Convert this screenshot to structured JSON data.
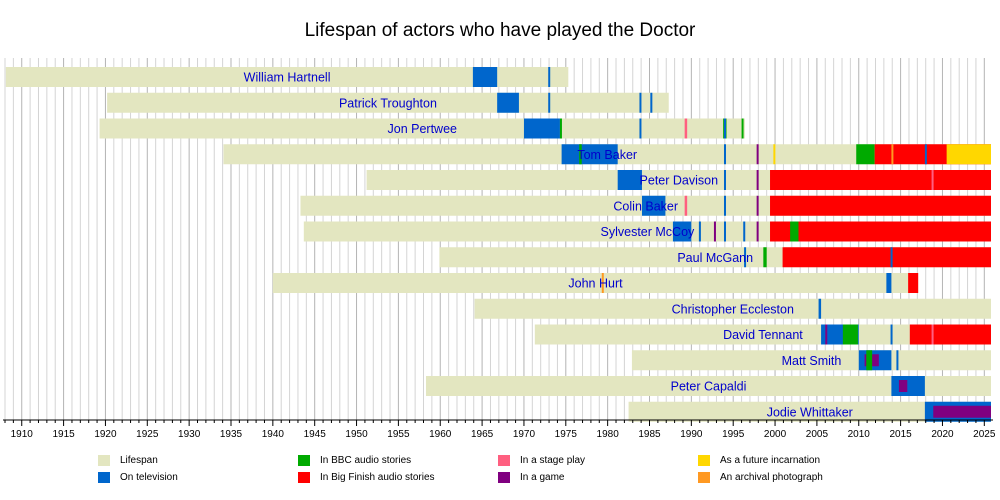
{
  "colors": {
    "lifespan": "#e3e6c0",
    "television": "#0066cc",
    "bbc_audio": "#00aa00",
    "big_finish": "#ff0000",
    "stage_play": "#ff5f80",
    "game": "#800080",
    "future": "#ffd700",
    "archival": "#ff9922"
  },
  "chart_data": {
    "type": "timeline",
    "title": "Lifespan of actors who have played the Doctor",
    "xlim": [
      1908,
      2025.8
    ],
    "x_ticks": [
      1910,
      1915,
      1920,
      1925,
      1930,
      1935,
      1940,
      1945,
      1950,
      1955,
      1960,
      1965,
      1970,
      1975,
      1980,
      1985,
      1990,
      1995,
      2000,
      2005,
      2010,
      2015,
      2020,
      2025
    ],
    "grid": "vertical minor lines every year",
    "legend": [
      {
        "key": "lifespan",
        "label": "Lifespan"
      },
      {
        "key": "television",
        "label": "On television"
      },
      {
        "key": "bbc_audio",
        "label": "In BBC audio stories"
      },
      {
        "key": "big_finish",
        "label": "In Big Finish audio stories"
      },
      {
        "key": "stage_play",
        "label": "In a stage play"
      },
      {
        "key": "game",
        "label": "In a game"
      },
      {
        "key": "future",
        "label": "As a future incarnation"
      },
      {
        "key": "archival",
        "label": "An archival photograph"
      }
    ],
    "actors": [
      {
        "name": "William Hartnell",
        "lifespan": [
          1908.1,
          1975.3
        ],
        "segments": [
          {
            "type": "television",
            "start": 1963.9,
            "end": 1966.8
          },
          {
            "type": "television",
            "start": 1972.9,
            "end": 1973.1
          }
        ]
      },
      {
        "name": "Patrick Troughton",
        "lifespan": [
          1920.2,
          1987.3
        ],
        "segments": [
          {
            "type": "television",
            "start": 1966.8,
            "end": 1969.4
          },
          {
            "type": "television",
            "start": 1972.9,
            "end": 1973.1
          },
          {
            "type": "television",
            "start": 1983.8,
            "end": 1984.0
          },
          {
            "type": "television",
            "start": 1985.1,
            "end": 1985.3
          }
        ]
      },
      {
        "name": "Jon Pertwee",
        "lifespan": [
          1919.3,
          1996.4
        ],
        "segments": [
          {
            "type": "television",
            "start": 1970.0,
            "end": 1974.3
          },
          {
            "type": "bbc_audio",
            "start": 1974.3,
            "end": 1974.5
          },
          {
            "type": "television",
            "start": 1983.8,
            "end": 1984.0
          },
          {
            "type": "stage_play",
            "start": 1989.2,
            "end": 1989.5
          },
          {
            "type": "bbc_audio",
            "start": 1993.8,
            "end": 1994.2
          },
          {
            "type": "television",
            "start": 1993.9,
            "end": 1994.1
          },
          {
            "type": "bbc_audio",
            "start": 1996.0,
            "end": 1996.2
          }
        ]
      },
      {
        "name": "Tom Baker",
        "lifespan": [
          1934.1,
          2025.8
        ],
        "segments": [
          {
            "type": "television",
            "start": 1974.5,
            "end": 1981.2
          },
          {
            "type": "bbc_audio",
            "start": 1976.6,
            "end": 1976.9
          },
          {
            "type": "television",
            "start": 1993.9,
            "end": 1994.1
          },
          {
            "type": "game",
            "start": 1997.8,
            "end": 1998.0
          },
          {
            "type": "future",
            "start": 1999.8,
            "end": 2000.0
          },
          {
            "type": "bbc_audio",
            "start": 2009.7,
            "end": 2011.9
          },
          {
            "type": "big_finish",
            "start": 2011.9,
            "end": 2025.8
          },
          {
            "type": "archival",
            "start": 2013.9,
            "end": 2014.1
          },
          {
            "type": "television",
            "start": 2017.9,
            "end": 2018.1
          },
          {
            "type": "future",
            "start": 2020.5,
            "end": 2025.8
          }
        ]
      },
      {
        "name": "Peter Davison",
        "lifespan": [
          1951.2,
          2025.8
        ],
        "segments": [
          {
            "type": "television",
            "start": 1981.2,
            "end": 1984.1
          },
          {
            "type": "television",
            "start": 1993.9,
            "end": 1994.1
          },
          {
            "type": "game",
            "start": 1997.8,
            "end": 1998.0
          },
          {
            "type": "big_finish",
            "start": 1999.4,
            "end": 2025.8
          },
          {
            "type": "stage_play",
            "start": 2018.7,
            "end": 2018.9
          }
        ]
      },
      {
        "name": "Colin Baker",
        "lifespan": [
          1943.3,
          2025.8
        ],
        "segments": [
          {
            "type": "television",
            "start": 1984.1,
            "end": 1986.9
          },
          {
            "type": "stage_play",
            "start": 1989.2,
            "end": 1989.5
          },
          {
            "type": "television",
            "start": 1993.9,
            "end": 1994.1
          },
          {
            "type": "game",
            "start": 1997.8,
            "end": 1998.0
          },
          {
            "type": "big_finish",
            "start": 1999.4,
            "end": 2025.8
          }
        ]
      },
      {
        "name": "Sylvester McCoy",
        "lifespan": [
          1943.7,
          2025.8
        ],
        "segments": [
          {
            "type": "television",
            "start": 1987.8,
            "end": 1990.0
          },
          {
            "type": "television",
            "start": 1990.9,
            "end": 1991.1
          },
          {
            "type": "game",
            "start": 1992.7,
            "end": 1992.9
          },
          {
            "type": "television",
            "start": 1993.9,
            "end": 1994.1
          },
          {
            "type": "television",
            "start": 1996.2,
            "end": 1996.4
          },
          {
            "type": "game",
            "start": 1997.8,
            "end": 1998.0
          },
          {
            "type": "big_finish",
            "start": 1999.4,
            "end": 2025.8
          },
          {
            "type": "bbc_audio",
            "start": 2001.8,
            "end": 2002.8
          }
        ]
      },
      {
        "name": "Paul McGann",
        "lifespan": [
          1959.9,
          2025.8
        ],
        "segments": [
          {
            "type": "television",
            "start": 1996.3,
            "end": 1996.5
          },
          {
            "type": "bbc_audio",
            "start": 1998.6,
            "end": 1999.0
          },
          {
            "type": "big_finish",
            "start": 2000.9,
            "end": 2025.8
          },
          {
            "type": "television",
            "start": 2013.8,
            "end": 2014.0
          }
        ]
      },
      {
        "name": "John Hurt",
        "lifespan": [
          1940.0,
          2017.1
        ],
        "segments": [
          {
            "type": "archival",
            "start": 1979.3,
            "end": 1979.5
          },
          {
            "type": "television",
            "start": 2013.3,
            "end": 2013.9
          },
          {
            "type": "big_finish",
            "start": 2015.9,
            "end": 2017.1
          }
        ]
      },
      {
        "name": "Christopher Eccleston",
        "lifespan": [
          1964.1,
          2025.8
        ],
        "segments": [
          {
            "type": "television",
            "start": 2005.2,
            "end": 2005.5
          }
        ]
      },
      {
        "name": "David Tennant",
        "lifespan": [
          1971.3,
          2025.8
        ],
        "segments": [
          {
            "type": "television",
            "start": 2005.5,
            "end": 2010.0
          },
          {
            "type": "bbc_audio",
            "start": 2008.1,
            "end": 2009.9
          },
          {
            "type": "game",
            "start": 2006.0,
            "end": 2006.2
          },
          {
            "type": "television",
            "start": 2013.8,
            "end": 2014.0
          },
          {
            "type": "big_finish",
            "start": 2016.1,
            "end": 2025.8
          },
          {
            "type": "stage_play",
            "start": 2018.7,
            "end": 2018.9
          }
        ]
      },
      {
        "name": "Matt Smith",
        "lifespan": [
          1982.9,
          2025.8
        ],
        "segments": [
          {
            "type": "television",
            "start": 2010.0,
            "end": 2013.9
          },
          {
            "type": "game",
            "start": 2010.7,
            "end": 2012.4
          },
          {
            "type": "bbc_audio",
            "start": 2010.9,
            "end": 2011.6
          },
          {
            "type": "television",
            "start": 2014.5,
            "end": 2014.7
          }
        ]
      },
      {
        "name": "Peter Capaldi",
        "lifespan": [
          1958.3,
          2025.8
        ],
        "segments": [
          {
            "type": "television",
            "start": 2013.9,
            "end": 2017.9
          },
          {
            "type": "game",
            "start": 2014.8,
            "end": 2015.8
          }
        ]
      },
      {
        "name": "Jodie Whittaker",
        "lifespan": [
          1982.5,
          2025.8
        ],
        "segments": [
          {
            "type": "television",
            "start": 2017.9,
            "end": 2025.8
          },
          {
            "type": "game",
            "start": 2018.9,
            "end": 2025.8
          }
        ]
      }
    ]
  }
}
